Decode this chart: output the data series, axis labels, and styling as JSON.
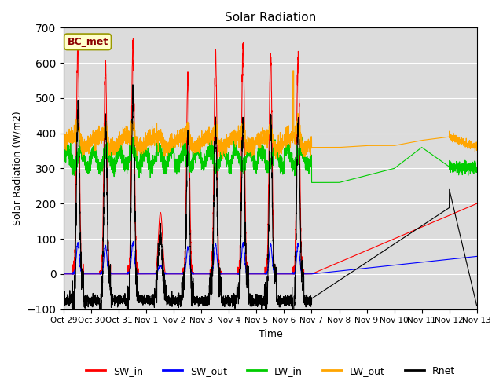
{
  "title": "Solar Radiation",
  "ylabel": "Solar Radiation (W/m2)",
  "xlabel": "Time",
  "ylim": [
    -100,
    700
  ],
  "yticks": [
    -100,
    0,
    100,
    200,
    300,
    400,
    500,
    600,
    700
  ],
  "annotation": "BC_met",
  "annotation_color": "#8B0000",
  "annotation_bg": "#FFFFCC",
  "series_colors": {
    "SW_in": "red",
    "SW_out": "blue",
    "LW_in": "#00CC00",
    "LW_out": "orange",
    "Rnet": "black"
  },
  "x_tick_labels": [
    "Oct 29",
    "Oct 30",
    "Oct 31",
    "Nov 1",
    "Nov 2",
    "Nov 3",
    "Nov 4",
    "Nov 5",
    "Nov 6",
    "Nov 7",
    "Nov 8",
    "Nov 9",
    "Nov 10",
    "Nov 11",
    "Nov 12",
    "Nov 13"
  ],
  "bg_color": "#DCDCDC"
}
